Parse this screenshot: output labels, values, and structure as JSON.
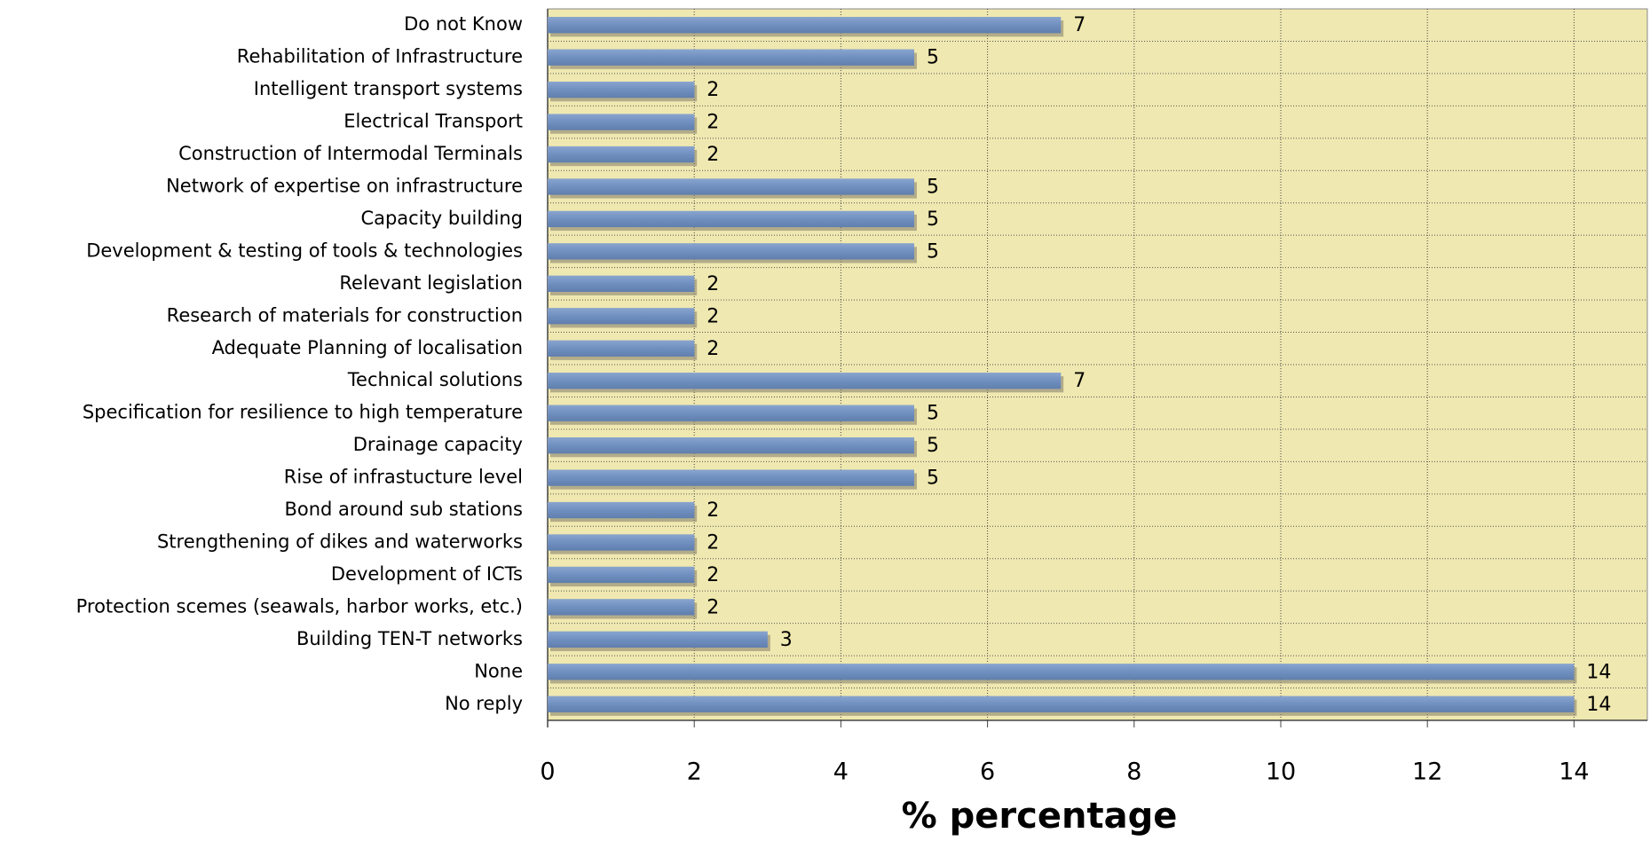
{
  "chart_data": {
    "type": "bar",
    "orientation": "horizontal",
    "categories": [
      "Do not Know",
      "Rehabilitation of Infrastructure",
      "Intelligent transport systems",
      "Electrical Transport",
      "Construction of Intermodal Terminals",
      "Network of expertise on infrastructure",
      "Capacity building",
      "Development & testing of tools & technologies",
      "Relevant legislation",
      "Research of materials for construction",
      "Adequate Planning of localisation",
      "Technical solutions",
      "Specification for resilience to high temperature",
      "Drainage capacity",
      "Rise of infrastucture level",
      "Bond around sub stations",
      "Strengthening of dikes and waterworks",
      "Development of ICTs",
      "Protection scemes (seawals, harbor works, etc.)",
      "Building TEN-T networks",
      "None",
      "No reply"
    ],
    "values": [
      7,
      5,
      2,
      2,
      2,
      5,
      5,
      5,
      2,
      2,
      2,
      7,
      5,
      5,
      5,
      2,
      2,
      2,
      2,
      3,
      14,
      14
    ],
    "color": "#7090c0",
    "xlabel": "% percentage",
    "xlim": [
      0,
      15
    ],
    "xticks": [
      0,
      2,
      4,
      6,
      8,
      10,
      12,
      14
    ],
    "grid": true,
    "background": "#efe8b0"
  }
}
